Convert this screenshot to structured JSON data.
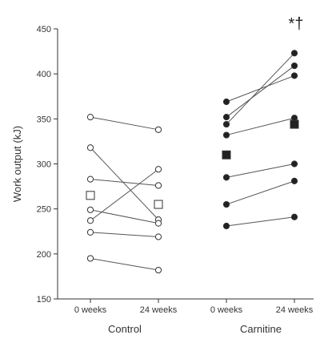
{
  "chart_data": {
    "type": "scatter",
    "subtype": "paired-line",
    "ylabel": "Work output (kJ)",
    "ylim": [
      150,
      450
    ],
    "yticks": [
      150,
      200,
      250,
      300,
      350,
      400,
      450
    ],
    "x_categories": [
      "0 weeks",
      "24 weeks",
      "0 weeks",
      "24 weeks"
    ],
    "groups": [
      {
        "label": "Control",
        "marker": "open",
        "subjects": [
          [
            352,
            338
          ],
          [
            318,
            238
          ],
          [
            283,
            276
          ],
          [
            249,
            234
          ],
          [
            237,
            294
          ],
          [
            224,
            219
          ],
          [
            195,
            182
          ]
        ],
        "mean": [
          265,
          255
        ]
      },
      {
        "label": "Carnitine",
        "marker": "filled",
        "subjects": [
          [
            369,
            398
          ],
          [
            352,
            409
          ],
          [
            344,
            423
          ],
          [
            332,
            351
          ],
          [
            285,
            300
          ],
          [
            255,
            281
          ],
          [
            231,
            241
          ]
        ],
        "mean": [
          310,
          344
        ]
      }
    ],
    "annotation": "*†",
    "colors": {
      "line": "#555555",
      "marker_edge": "#333333",
      "filled": "#222222",
      "axis": "#333333"
    }
  }
}
